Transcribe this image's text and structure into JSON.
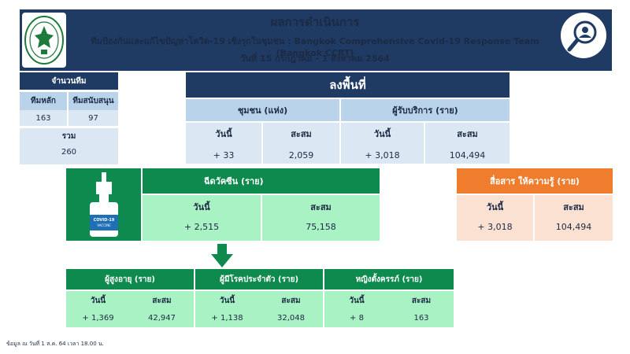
{
  "header": {
    "title": "ผลการดำเนินการ",
    "subtitle": "ทีมป้องกันและแก้ไขปัญหาโควิด-19 เชิงรุกในชุมชน : Bangkok Comprehensive Covid-19 Response Team (Bangkok CCRT)",
    "date_range": "วันที่ 15 กรกฎาคม - 1 สิงหาคม 2564"
  },
  "team": {
    "title": "จำนวนทีม",
    "main_label": "ทีมหลัก",
    "main_value": "163",
    "support_label": "ทีมสนับสนุน",
    "support_value": "97",
    "total_label": "รวม",
    "total_value": "260"
  },
  "field": {
    "title": "ลงพื้นที่",
    "community": {
      "title": "ชุมชน (แห่ง)",
      "today_label": "วันนี้",
      "today_value": "+ 33",
      "total_label": "สะสม",
      "total_value": "2,059"
    },
    "service": {
      "title": "ผู้รับบริการ (ราย)",
      "today_label": "วันนี้",
      "today_value": "+ 3,018",
      "total_label": "สะสม",
      "total_value": "104,494"
    }
  },
  "vaccine": {
    "title": "ฉีดวัคซีน (ราย)",
    "icon_text_1": "COVID-19",
    "icon_text_2": "VACCINE",
    "today_label": "วันนี้",
    "today_value": "+ 2,515",
    "total_label": "สะสม",
    "total_value": "75,158"
  },
  "communication": {
    "title": "สื่อสาร ให้ความรู้ (ราย)",
    "today_label": "วันนี้",
    "today_value": "+ 3,018",
    "total_label": "สะสม",
    "total_value": "104,494"
  },
  "groups": [
    {
      "title": "ผู้สูงอายุ (ราย)",
      "today_label": "วันนี้",
      "today_value": "+ 1,369",
      "total_label": "สะสม",
      "total_value": "42,947"
    },
    {
      "title": "ผู้มีโรคประจำตัว (ราย)",
      "today_label": "วันนี้",
      "today_value": "+ 1,138",
      "total_label": "สะสม",
      "total_value": "32,048"
    },
    {
      "title": "หญิงตั้งครรภ์ (ราย)",
      "today_label": "วันนี้",
      "today_value": "+ 8",
      "total_label": "สะสม",
      "total_value": "163"
    }
  ],
  "footnote": "ข้อมูล ณ วันที่ 1 ส.ค. 64 เวลา 18.00 น.",
  "colors": {
    "navy": "#1f3b63",
    "light_blue": "#b9d3ea",
    "green": "#0e8a4e",
    "mint": "#a9f2c3",
    "orange": "#ef7d2d",
    "peach": "#fbe1d2"
  },
  "icons": [
    "bangkok-seal-logo",
    "person-search-icon",
    "vaccine-vial-icon",
    "down-arrow-icon"
  ]
}
